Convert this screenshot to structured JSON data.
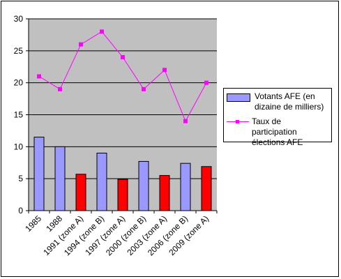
{
  "chart_data": {
    "type": "bar",
    "categories": [
      "1985",
      "1988",
      "1991 (zone A)",
      "1994 (zone B)",
      "1997 (zone A)",
      "2000 (zone B)",
      "2003 (zone A)",
      "2006 (zone B)",
      "2009 (zone A)"
    ],
    "series": [
      {
        "name": "Votants AFE  (en dizaine de milliers)",
        "kind": "bar",
        "values": [
          11.5,
          10,
          5.7,
          9,
          4.9,
          7.7,
          5.5,
          7.4,
          6.9
        ],
        "colors": [
          "#9999ff",
          "#9999ff",
          "#ff0000",
          "#9999ff",
          "#ff0000",
          "#9999ff",
          "#ff0000",
          "#9999ff",
          "#ff0000"
        ]
      },
      {
        "name": "Taux de participation élections AFE",
        "kind": "line",
        "values": [
          21,
          19,
          26,
          28,
          24,
          19,
          22,
          14,
          20
        ],
        "color": "#ff00ff"
      }
    ],
    "yticks": [
      "0",
      "5",
      "10",
      "15",
      "20",
      "25",
      "30"
    ],
    "ylim": [
      0,
      30
    ],
    "grid": true,
    "plot_background": "#c0c0c0",
    "legend_position": "right"
  }
}
